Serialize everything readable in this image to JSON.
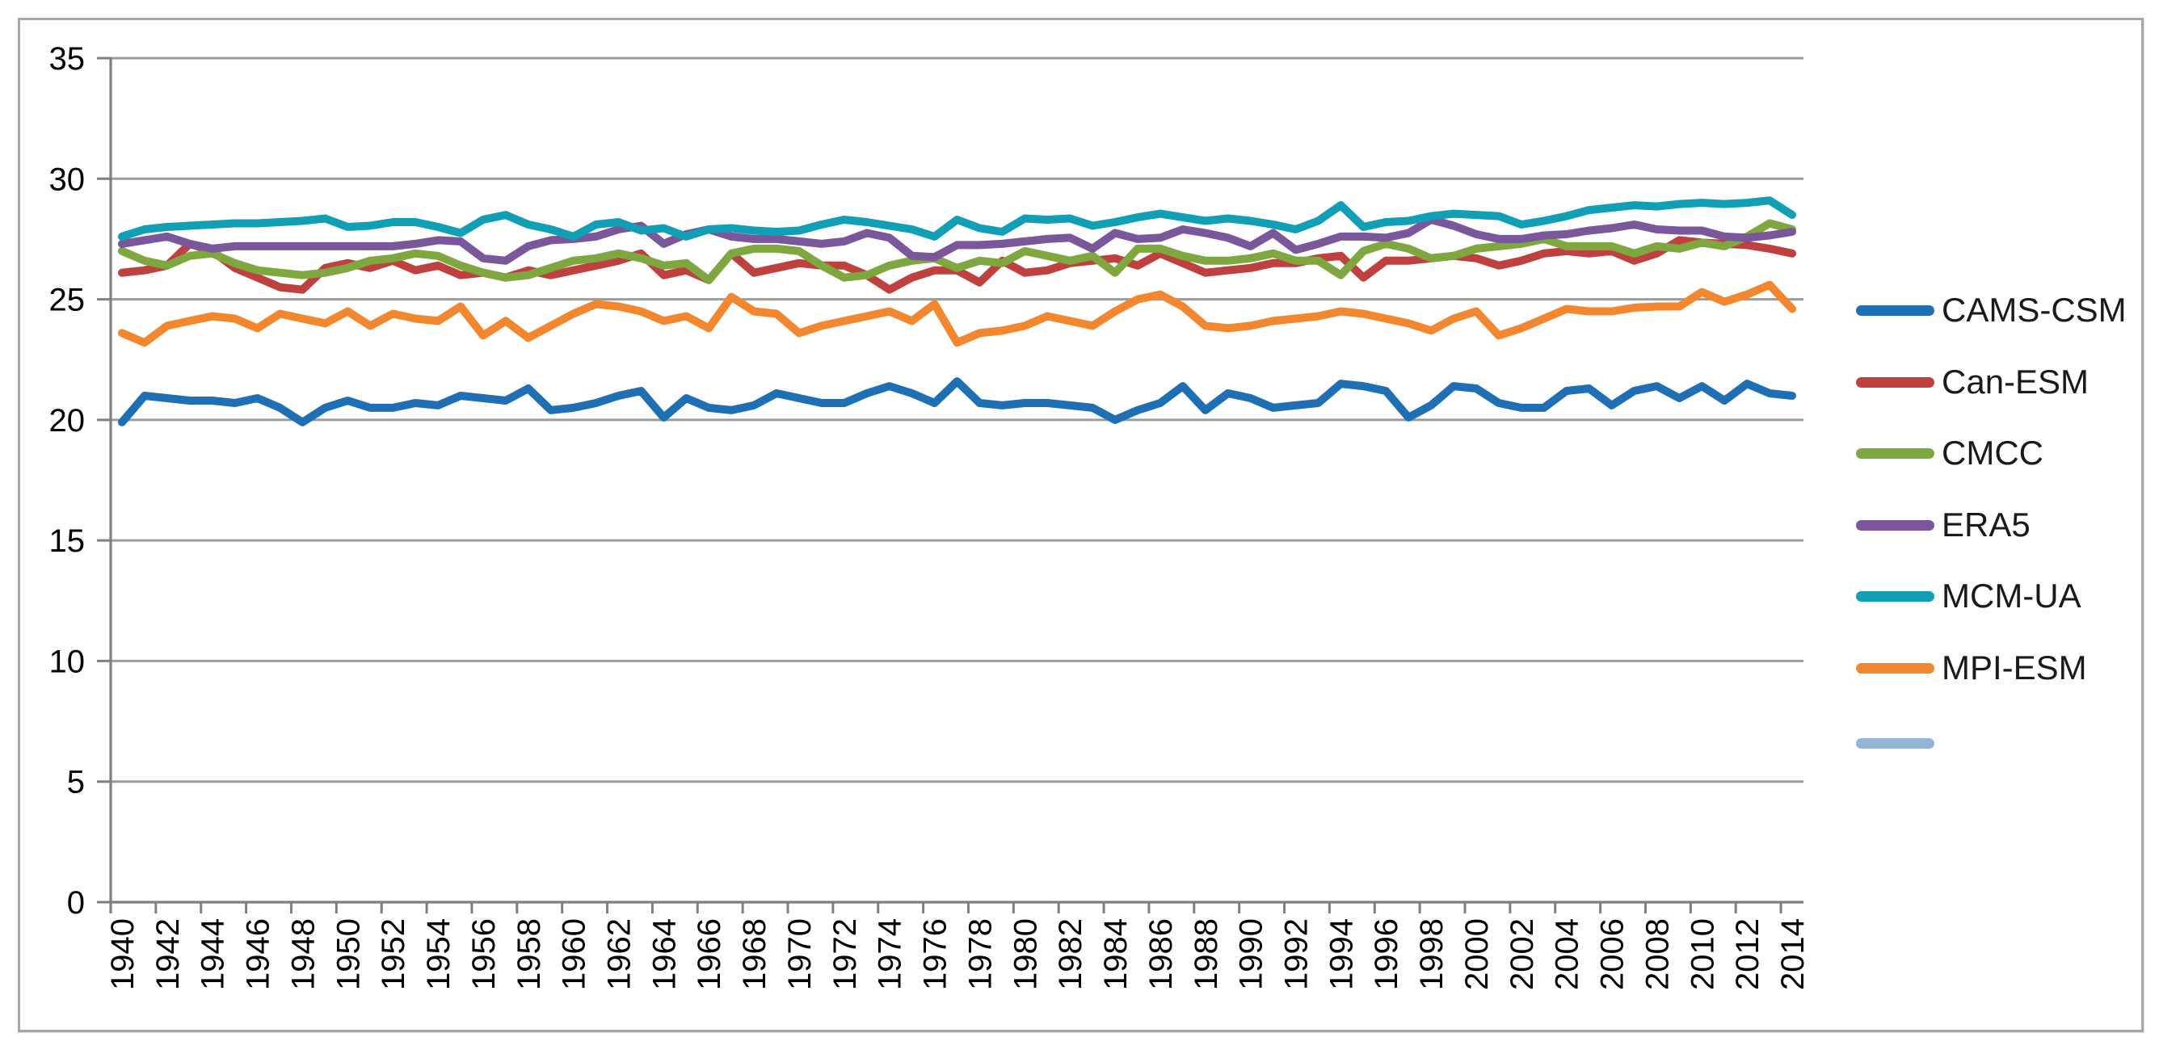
{
  "chart_data": {
    "type": "line",
    "title": "",
    "xlabel": "",
    "ylabel": "",
    "ylim": [
      0,
      35
    ],
    "grid": "horizontal",
    "legend_position": "right",
    "y_ticks": [
      0,
      5,
      10,
      15,
      20,
      25,
      30,
      35
    ],
    "x": [
      1940,
      1941,
      1942,
      1943,
      1944,
      1945,
      1946,
      1947,
      1948,
      1949,
      1950,
      1951,
      1952,
      1953,
      1954,
      1955,
      1956,
      1957,
      1958,
      1959,
      1960,
      1961,
      1962,
      1963,
      1964,
      1965,
      1966,
      1967,
      1968,
      1969,
      1970,
      1971,
      1972,
      1973,
      1974,
      1975,
      1976,
      1977,
      1978,
      1979,
      1980,
      1981,
      1982,
      1983,
      1984,
      1985,
      1986,
      1987,
      1988,
      1989,
      1990,
      1991,
      1992,
      1993,
      1994,
      1995,
      1996,
      1997,
      1998,
      1999,
      2000,
      2001,
      2002,
      2003,
      2004,
      2005,
      2006,
      2007,
      2008,
      2009,
      2010,
      2011,
      2012,
      2013,
      2014
    ],
    "x_tick_labels": [
      "1940",
      "1942",
      "1944",
      "1946",
      "1948",
      "1950",
      "1952",
      "1954",
      "1956",
      "1958",
      "1960",
      "1962",
      "1964",
      "1966",
      "1968",
      "1970",
      "1972",
      "1974",
      "1976",
      "1978",
      "1980",
      "1982",
      "1984",
      "1986",
      "1988",
      "1990",
      "1992",
      "1994",
      "1996",
      "1998",
      "2000",
      "2002",
      "2004",
      "2006",
      "2008",
      "2010",
      "2012",
      "2014"
    ],
    "series": [
      {
        "name": "CAMS-CSM",
        "color": "#1F6FB4",
        "values": [
          19.9,
          21.0,
          20.9,
          20.8,
          20.8,
          20.7,
          20.9,
          20.5,
          19.9,
          20.5,
          20.8,
          20.5,
          20.5,
          20.7,
          20.6,
          21.0,
          20.9,
          20.8,
          21.3,
          20.4,
          20.5,
          20.7,
          21.0,
          21.2,
          20.1,
          20.9,
          20.5,
          20.4,
          20.6,
          21.1,
          20.9,
          20.7,
          20.7,
          21.1,
          21.4,
          21.1,
          20.7,
          21.6,
          20.7,
          20.6,
          20.7,
          20.7,
          20.6,
          20.5,
          20.0,
          20.4,
          20.7,
          21.4,
          20.4,
          21.1,
          20.9,
          20.5,
          20.6,
          20.7,
          21.5,
          21.4,
          21.2,
          20.1,
          20.6,
          21.4,
          21.3,
          20.7,
          20.5,
          20.5,
          21.2,
          21.3,
          20.6,
          21.2,
          21.4,
          20.9,
          21.4,
          20.8,
          21.5,
          21.1,
          21.0
        ]
      },
      {
        "name": "Can-ESM",
        "color": "#BE4140",
        "values": [
          26.1,
          26.2,
          26.4,
          27.3,
          27.0,
          26.3,
          25.9,
          25.5,
          25.4,
          26.3,
          26.5,
          26.3,
          26.6,
          26.2,
          26.4,
          26.0,
          26.1,
          25.9,
          26.2,
          26.0,
          26.2,
          26.4,
          26.6,
          26.9,
          26.0,
          26.2,
          25.8,
          26.9,
          26.1,
          26.3,
          26.5,
          26.4,
          26.4,
          26.0,
          25.4,
          25.9,
          26.2,
          26.2,
          25.7,
          26.6,
          26.1,
          26.2,
          26.5,
          26.6,
          26.7,
          26.4,
          26.9,
          26.5,
          26.1,
          26.2,
          26.3,
          26.5,
          26.5,
          26.7,
          26.8,
          25.9,
          26.6,
          26.6,
          26.7,
          26.8,
          26.7,
          26.4,
          26.6,
          26.9,
          27.0,
          26.9,
          27.0,
          26.6,
          26.9,
          27.45,
          27.35,
          27.3,
          27.25,
          27.1,
          26.9
        ]
      },
      {
        "name": "CMCC",
        "color": "#7FA73F",
        "values": [
          27.0,
          26.6,
          26.4,
          26.8,
          26.9,
          26.5,
          26.2,
          26.1,
          26.0,
          26.1,
          26.3,
          26.6,
          26.7,
          26.9,
          26.8,
          26.4,
          26.1,
          25.9,
          26.0,
          26.3,
          26.6,
          26.7,
          26.9,
          26.7,
          26.4,
          26.5,
          25.8,
          26.9,
          27.1,
          27.1,
          27.0,
          26.4,
          25.9,
          26.0,
          26.4,
          26.6,
          26.7,
          26.3,
          26.6,
          26.5,
          27.0,
          26.8,
          26.6,
          26.8,
          26.1,
          27.1,
          27.1,
          26.8,
          26.6,
          26.6,
          26.7,
          26.9,
          26.6,
          26.6,
          26.0,
          27.0,
          27.3,
          27.1,
          26.7,
          26.8,
          27.1,
          27.2,
          27.3,
          27.5,
          27.2,
          27.2,
          27.2,
          26.9,
          27.2,
          27.1,
          27.35,
          27.2,
          27.6,
          28.15,
          27.9
        ]
      },
      {
        "name": "ERA5",
        "color": "#7A569B",
        "values": [
          27.3,
          27.45,
          27.6,
          27.3,
          27.1,
          27.2,
          27.2,
          27.2,
          27.2,
          27.2,
          27.2,
          27.2,
          27.2,
          27.3,
          27.45,
          27.4,
          26.7,
          26.6,
          27.2,
          27.45,
          27.5,
          27.6,
          27.9,
          28.05,
          27.3,
          27.7,
          27.9,
          27.6,
          27.5,
          27.5,
          27.4,
          27.3,
          27.4,
          27.75,
          27.55,
          26.8,
          26.75,
          27.25,
          27.25,
          27.3,
          27.4,
          27.5,
          27.55,
          27.1,
          27.75,
          27.5,
          27.55,
          27.9,
          27.75,
          27.55,
          27.2,
          27.75,
          27.05,
          27.3,
          27.6,
          27.6,
          27.55,
          27.75,
          28.3,
          28.05,
          27.7,
          27.5,
          27.5,
          27.65,
          27.7,
          27.85,
          27.95,
          28.1,
          27.9,
          27.85,
          27.85,
          27.6,
          27.55,
          27.65,
          27.8
        ]
      },
      {
        "name": "MCM-UA",
        "color": "#119FB5",
        "values": [
          27.6,
          27.9,
          28.0,
          28.05,
          28.1,
          28.15,
          28.15,
          28.2,
          28.25,
          28.35,
          28.0,
          28.05,
          28.2,
          28.2,
          28.0,
          27.75,
          28.3,
          28.5,
          28.1,
          27.9,
          27.6,
          28.1,
          28.2,
          27.85,
          27.95,
          27.6,
          27.9,
          27.95,
          27.85,
          27.8,
          27.85,
          28.1,
          28.3,
          28.2,
          28.05,
          27.9,
          27.6,
          28.3,
          27.95,
          27.8,
          28.35,
          28.3,
          28.35,
          28.05,
          28.2,
          28.4,
          28.55,
          28.4,
          28.25,
          28.35,
          28.25,
          28.1,
          27.9,
          28.25,
          28.9,
          28.0,
          28.2,
          28.25,
          28.45,
          28.55,
          28.5,
          28.45,
          28.1,
          28.25,
          28.45,
          28.7,
          28.8,
          28.9,
          28.85,
          28.95,
          29.0,
          28.95,
          29.0,
          29.1,
          28.5
        ]
      },
      {
        "name": "MPI-ESM",
        "color": "#F3872F",
        "values": [
          23.6,
          23.2,
          23.9,
          24.1,
          24.3,
          24.2,
          23.8,
          24.4,
          24.2,
          24.0,
          24.5,
          23.9,
          24.4,
          24.2,
          24.1,
          24.7,
          23.5,
          24.1,
          23.4,
          23.9,
          24.4,
          24.8,
          24.7,
          24.5,
          24.1,
          24.3,
          23.8,
          25.1,
          24.5,
          24.4,
          23.6,
          23.9,
          24.1,
          24.3,
          24.5,
          24.1,
          24.8,
          23.2,
          23.6,
          23.7,
          23.9,
          24.3,
          24.1,
          23.9,
          24.5,
          25.0,
          25.2,
          24.7,
          23.9,
          23.8,
          23.9,
          24.1,
          24.2,
          24.3,
          24.5,
          24.4,
          24.2,
          24.0,
          23.7,
          24.2,
          24.5,
          23.5,
          23.8,
          24.2,
          24.6,
          24.5,
          24.5,
          24.65,
          24.7,
          24.7,
          25.3,
          24.9,
          25.2,
          25.6,
          24.6
        ]
      }
    ],
    "legend": [
      {
        "label": "CAMS-CSM",
        "color": "#1F6FB4"
      },
      {
        "label": "Can-ESM",
        "color": "#BE4140"
      },
      {
        "label": "CMCC",
        "color": "#7FA73F"
      },
      {
        "label": "ERA5",
        "color": "#7A569B"
      },
      {
        "label": "MCM-UA",
        "color": "#119FB5"
      },
      {
        "label": "MPI-ESM",
        "color": "#F3872F"
      },
      {
        "label": "",
        "color": "#95B3D7"
      }
    ],
    "colors": {
      "gridline": "#9b9b9b",
      "axis": "#7f7f7f",
      "tick_text": "#000000"
    }
  }
}
